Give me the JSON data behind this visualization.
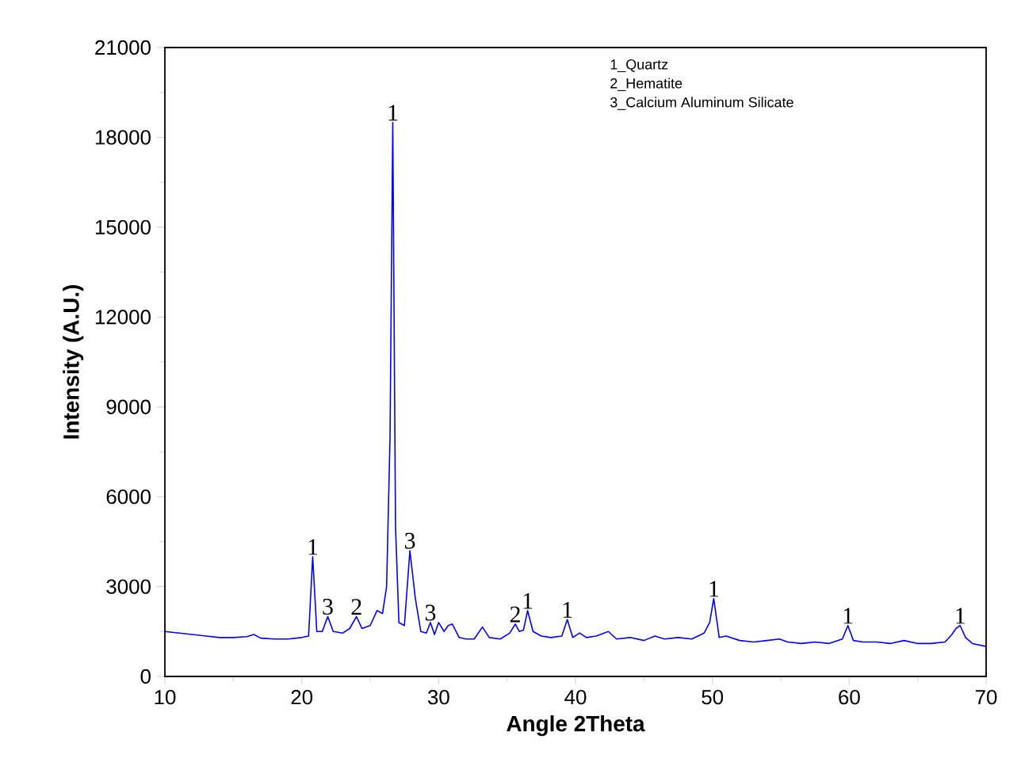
{
  "chart_data": {
    "type": "line",
    "xlabel": "Angle 2Theta",
    "ylabel": "Intensity (A.U.)",
    "xlim": [
      10,
      70
    ],
    "ylim": [
      0,
      21000
    ],
    "xticks": [
      10,
      20,
      30,
      40,
      50,
      60,
      70
    ],
    "yticks": [
      0,
      3000,
      6000,
      9000,
      12000,
      15000,
      18000,
      21000
    ],
    "series": [
      {
        "color": "#0000ff",
        "x": [
          10,
          11,
          12,
          13,
          14,
          15,
          16,
          16.5,
          17,
          18,
          19,
          20,
          20.5,
          20.8,
          21.1,
          21.5,
          21.9,
          22.3,
          23,
          23.5,
          24,
          24.4,
          25,
          25.5,
          25.9,
          26.2,
          26.45,
          26.65,
          26.85,
          27.1,
          27.5,
          27.9,
          28.3,
          28.7,
          29.1,
          29.4,
          29.7,
          30,
          30.4,
          30.7,
          31,
          31.5,
          32,
          32.6,
          33.2,
          33.7,
          34.5,
          35.2,
          35.6,
          35.9,
          36.2,
          36.5,
          36.9,
          37.5,
          38.2,
          39,
          39.4,
          39.8,
          40.3,
          40.8,
          41.5,
          42.4,
          43,
          44,
          45,
          45.8,
          46.5,
          47.5,
          48.5,
          49.4,
          49.8,
          50.1,
          50.5,
          51,
          52,
          53,
          54,
          54.9,
          55.5,
          56.5,
          57.5,
          58.5,
          59.5,
          59.9,
          60.3,
          61,
          62,
          63,
          64,
          65,
          66,
          67,
          67.5,
          67.8,
          68.1,
          68.5,
          69,
          70
        ],
        "values": [
          1500,
          1450,
          1400,
          1350,
          1300,
          1300,
          1330,
          1400,
          1280,
          1250,
          1250,
          1300,
          1350,
          4000,
          1500,
          1500,
          2000,
          1500,
          1450,
          1600,
          2000,
          1600,
          1700,
          2200,
          2100,
          3000,
          8000,
          18500,
          5000,
          1800,
          1700,
          4200,
          2600,
          1500,
          1450,
          1800,
          1400,
          1800,
          1500,
          1700,
          1750,
          1300,
          1250,
          1250,
          1650,
          1300,
          1250,
          1450,
          1750,
          1500,
          1550,
          2200,
          1500,
          1350,
          1300,
          1350,
          1900,
          1300,
          1450,
          1300,
          1350,
          1500,
          1250,
          1300,
          1200,
          1350,
          1250,
          1300,
          1250,
          1450,
          1800,
          2600,
          1300,
          1350,
          1200,
          1150,
          1200,
          1250,
          1150,
          1100,
          1150,
          1100,
          1250,
          1700,
          1200,
          1150,
          1150,
          1100,
          1200,
          1100,
          1100,
          1150,
          1400,
          1600,
          1700,
          1300,
          1100,
          1000
        ]
      }
    ],
    "annotations": [
      {
        "text": "1",
        "x": 20.8,
        "y": 4000
      },
      {
        "text": "3",
        "x": 21.9,
        "y": 2000
      },
      {
        "text": "2",
        "x": 24,
        "y": 2000
      },
      {
        "text": "1",
        "x": 26.65,
        "y": 18500
      },
      {
        "text": "3",
        "x": 27.9,
        "y": 4200
      },
      {
        "text": "3",
        "x": 29.4,
        "y": 1800
      },
      {
        "text": "2",
        "x": 35.6,
        "y": 1750
      },
      {
        "text": "1",
        "x": 36.5,
        "y": 2200
      },
      {
        "text": "1",
        "x": 39.4,
        "y": 1900
      },
      {
        "text": "1",
        "x": 50.1,
        "y": 2600
      },
      {
        "text": "1",
        "x": 59.9,
        "y": 1700
      },
      {
        "text": "1",
        "x": 68.1,
        "y": 1700
      },
      "1_Quartz",
      "2_Hematite",
      "3_Calcium Aluminum Silicate"
    ],
    "grid": false,
    "marker": "none",
    "line_style": "solid"
  }
}
